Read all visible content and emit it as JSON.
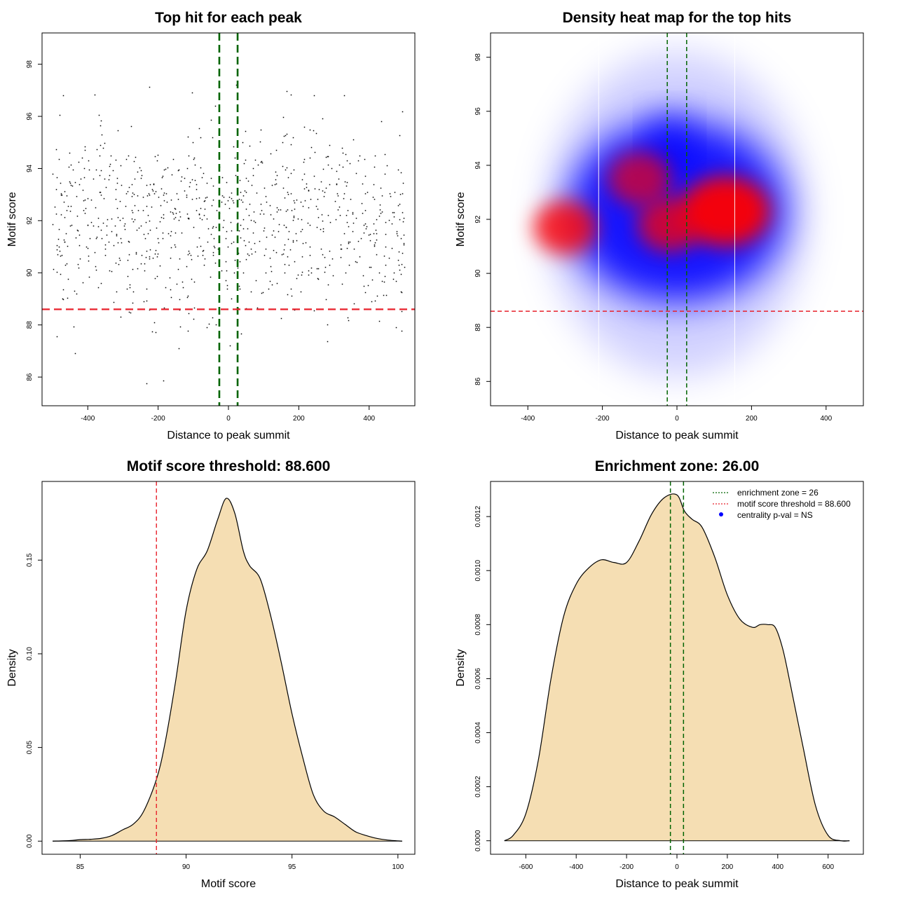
{
  "colors": {
    "green": "#006400",
    "red": "#e8212b",
    "fill": "#f5deb3",
    "point": "#000000",
    "heat_low": "#ffffff",
    "heat_mid": "#0000ff",
    "heat_high": "#ff0000"
  },
  "chart_data": [
    {
      "type": "scatter",
      "title": "Top hit for each peak",
      "xlabel": "Distance to peak summit",
      "ylabel": "Motif score",
      "xlim": [
        -530,
        530
      ],
      "ylim": [
        84.9,
        99.2
      ],
      "xticks": [
        -400,
        -200,
        0,
        200,
        400
      ],
      "xtick_labels": [
        "-400",
        "-200",
        "0",
        "200",
        "400"
      ],
      "yticks": [
        86,
        88,
        90,
        92,
        94,
        96,
        98
      ],
      "ytick_labels": [
        "86",
        "88",
        "90",
        "92",
        "94",
        "96",
        "98"
      ],
      "n_points": 900,
      "score_mean": 92.0,
      "score_sd": 1.9,
      "min_score": 85.0,
      "distance_range": [
        -500,
        500
      ],
      "vlines": [
        -26,
        26
      ],
      "hline": 88.6
    },
    {
      "type": "heatmap",
      "title": "Density heat map for the top hits",
      "xlabel": "Distance to peak summit",
      "ylabel": "Motif score",
      "xlim": [
        -500,
        500
      ],
      "ylim": [
        85.1,
        98.9
      ],
      "xticks": [
        -400,
        -200,
        0,
        200,
        400
      ],
      "xtick_labels": [
        "-400",
        "-200",
        "0",
        "200",
        "400"
      ],
      "yticks": [
        86,
        88,
        90,
        92,
        94,
        96,
        98
      ],
      "ytick_labels": [
        "86",
        "88",
        "90",
        "92",
        "94",
        "96",
        "98"
      ],
      "vlines": [
        -26,
        26
      ],
      "hline": 88.6,
      "bin_edges": [
        -210,
        155
      ],
      "hotspots": [
        {
          "x": -300,
          "y": 91.7,
          "intensity": 0.85
        },
        {
          "x": 130,
          "y": 92.3,
          "intensity": 1.0
        },
        {
          "x": -20,
          "y": 91.8,
          "intensity": 0.8
        },
        {
          "x": -100,
          "y": 93.5,
          "intensity": 0.7
        }
      ],
      "bulk": {
        "x": 0,
        "y": 92.0,
        "spread_x": 560,
        "spread_y": 2.5
      }
    },
    {
      "type": "area",
      "title": "Motif score threshold: 88.600",
      "xlabel": "Motif score",
      "ylabel": "Density",
      "xlim": [
        83.2,
        100.8
      ],
      "ylim": [
        -0.007,
        0.192
      ],
      "xticks": [
        85,
        90,
        95,
        100
      ],
      "xtick_labels": [
        "85",
        "90",
        "95",
        "100"
      ],
      "yticks": [
        0.0,
        0.05,
        0.1,
        0.15
      ],
      "ytick_labels": [
        "0.00",
        "0.05",
        "0.10",
        "0.15"
      ],
      "x": [
        83.7,
        84.5,
        85.0,
        85.5,
        86.0,
        86.5,
        87.0,
        87.5,
        88.0,
        88.6,
        89.0,
        89.5,
        90.0,
        90.5,
        91.0,
        91.5,
        91.9,
        92.3,
        92.7,
        93.0,
        93.5,
        94.0,
        94.5,
        95.0,
        95.5,
        96.0,
        96.5,
        97.0,
        97.5,
        98.0,
        98.5,
        99.0,
        99.5,
        100.2
      ],
      "y": [
        0.0,
        0.0003,
        0.0008,
        0.001,
        0.0015,
        0.003,
        0.006,
        0.009,
        0.016,
        0.033,
        0.052,
        0.085,
        0.123,
        0.145,
        0.155,
        0.172,
        0.183,
        0.175,
        0.155,
        0.147,
        0.14,
        0.12,
        0.095,
        0.068,
        0.045,
        0.025,
        0.016,
        0.013,
        0.009,
        0.005,
        0.003,
        0.0015,
        0.0006,
        0.0
      ],
      "vline": 88.6
    },
    {
      "type": "area",
      "title": "Enrichment zone: 26.00",
      "xlabel": "Distance to peak summit",
      "ylabel": "Density",
      "xlim": [
        -740,
        740
      ],
      "ylim": [
        -5e-05,
        0.00133
      ],
      "xticks": [
        -600,
        -400,
        -200,
        0,
        200,
        400,
        600
      ],
      "xtick_labels": [
        "-600",
        "-400",
        "-200",
        "0",
        "200",
        "400",
        "600"
      ],
      "yticks": [
        0.0,
        0.0002,
        0.0004,
        0.0006,
        0.0008,
        0.001,
        0.0012
      ],
      "ytick_labels": [
        "0.0000",
        "0.0002",
        "0.0004",
        "0.0006",
        "0.0008",
        "0.0010",
        "0.0012"
      ],
      "x": [
        -685,
        -650,
        -600,
        -550,
        -500,
        -450,
        -400,
        -350,
        -300,
        -250,
        -200,
        -150,
        -100,
        -50,
        0,
        30,
        60,
        100,
        150,
        200,
        250,
        300,
        330,
        360,
        390,
        420,
        450,
        500,
        550,
        600,
        650,
        685
      ],
      "y": [
        0.0,
        2e-05,
        0.0001,
        0.0003,
        0.0006,
        0.00083,
        0.00095,
        0.00101,
        0.00104,
        0.00103,
        0.00103,
        0.00111,
        0.00121,
        0.00127,
        0.00128,
        0.00122,
        0.00119,
        0.00116,
        0.00105,
        0.00091,
        0.00082,
        0.00079,
        0.0008,
        0.0008,
        0.00079,
        0.00071,
        0.00058,
        0.00035,
        0.00013,
        2e-05,
        0.0,
        0.0
      ],
      "vlines": [
        -26,
        26
      ],
      "legend": {
        "position": "top-right",
        "entries": [
          {
            "label": "enrichment zone = 26",
            "color": "#006400",
            "style": "dotted-line"
          },
          {
            "label": "motif score threshold = 88.600",
            "color": "#e8212b",
            "style": "dotted-line"
          },
          {
            "label": "centrality p-val = NS",
            "color": "#0000ff",
            "style": "point"
          }
        ]
      }
    }
  ]
}
